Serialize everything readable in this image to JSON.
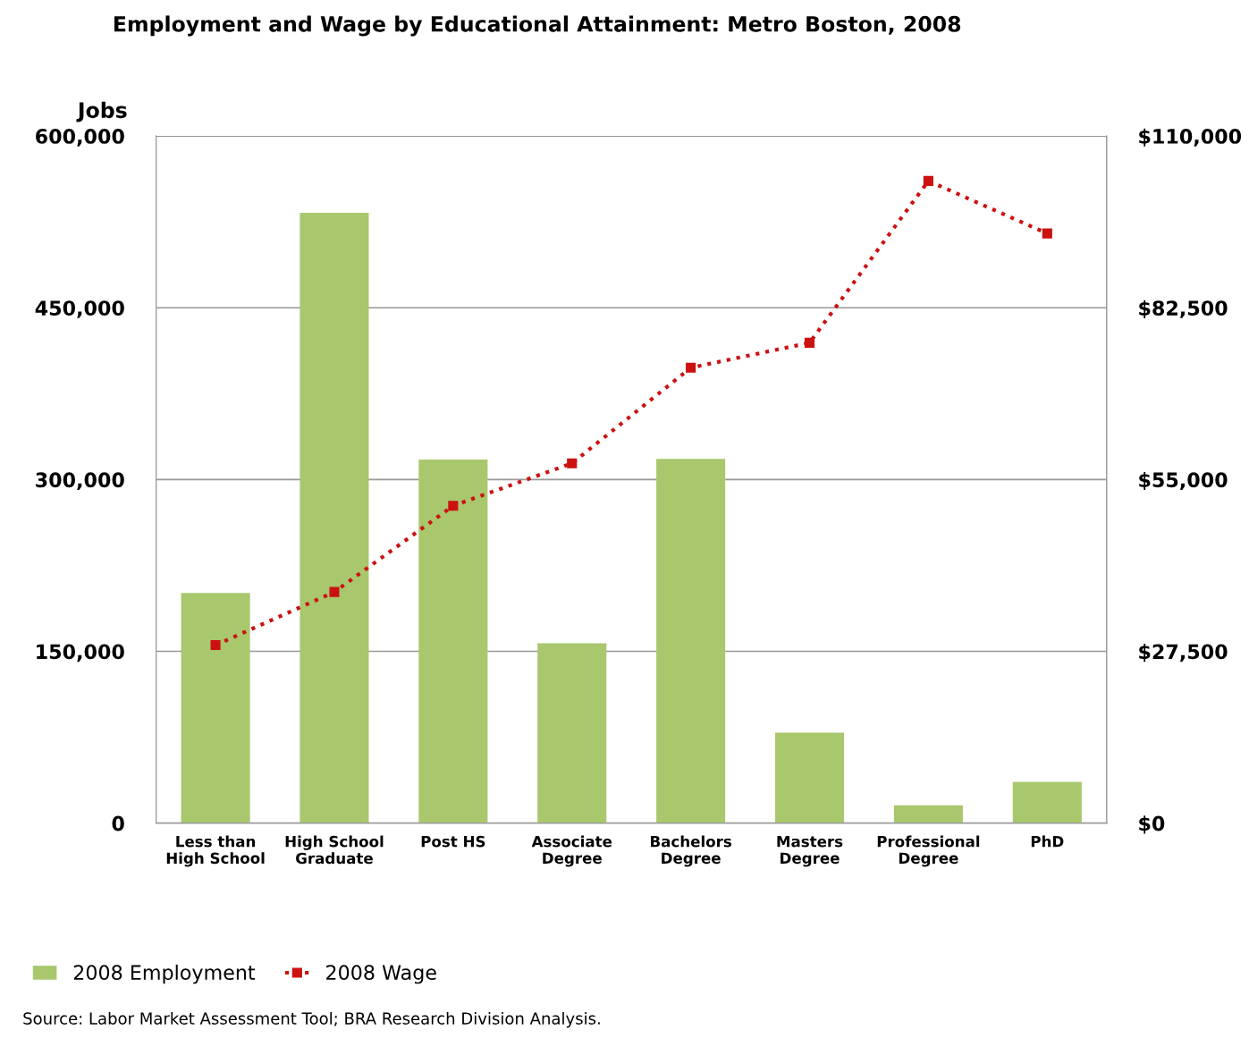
{
  "chart_data": {
    "type": "bar",
    "title": "Employment and Wage by Educational Attainment: Metro Boston, 2008",
    "ylabel": "Jobs",
    "categories": [
      "Less than\nHigh School",
      "High School\nGraduate",
      "Post HS",
      "Associate\nDegree",
      "Bachelors\nDegree",
      "Masters\nDegree",
      "Professional\nDegree",
      "PhD"
    ],
    "series": [
      {
        "name": "2008 Employment",
        "color": "#a9c76d",
        "values": [
          201000,
          533000,
          317500,
          157000,
          318000,
          79000,
          15600,
          36000
        ]
      },
      {
        "name": "2008 Wage",
        "type": "line",
        "axis": "y2",
        "color": "#cc1111",
        "marker": "square",
        "line_style": "dotted",
        "values": [
          28500,
          37000,
          50800,
          57600,
          72900,
          76900,
          102800,
          94400
        ]
      }
    ],
    "ylim": [
      0,
      600000
    ],
    "yticks": [
      {
        "value": 0,
        "label": "0"
      },
      {
        "value": 150000,
        "label": "150,000"
      },
      {
        "value": 300000,
        "label": "300,000"
      },
      {
        "value": 450000,
        "label": "450,000"
      },
      {
        "value": 600000,
        "label": "600,000"
      }
    ],
    "y2lim": [
      0,
      110000
    ],
    "y2ticks": [
      {
        "value": 0,
        "label": "$0"
      },
      {
        "value": 27500,
        "label": "$27,500"
      },
      {
        "value": 55000,
        "label": "$55,000"
      },
      {
        "value": 82500,
        "label": "$82,500"
      },
      {
        "value": 110000,
        "label": "$110,000"
      }
    ],
    "grid": "y",
    "legend": "bottom left",
    "annotations": [
      "Source: Labor Market Assessment Tool; BRA Research Division Analysis."
    ]
  }
}
